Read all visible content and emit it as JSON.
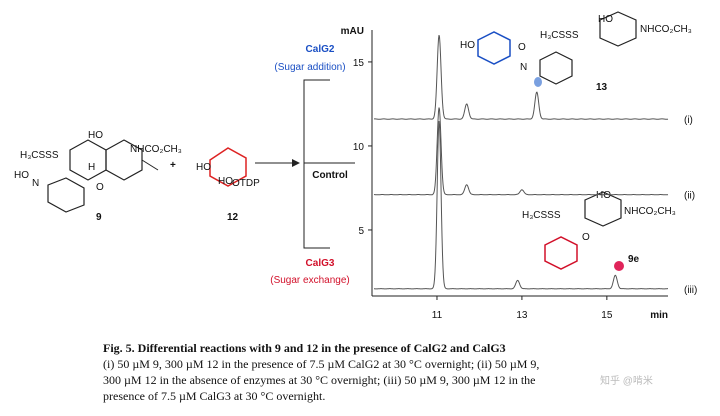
{
  "figure": {
    "chart": {
      "y_label": "mAU",
      "x_label": "min",
      "xlim": [
        9.47,
        16.44
      ],
      "ylim": [
        1.07,
        16.9
      ],
      "xticks": [
        11,
        13,
        15
      ],
      "yticks": [
        5,
        10,
        15
      ],
      "traces": [
        {
          "label": "(i)",
          "baseline": 11.6,
          "peaks": [
            {
              "x": 11.05,
              "height": 16.6
            },
            {
              "x": 11.7,
              "height": 12.5
            },
            {
              "x": 13.35,
              "height": 13.2
            }
          ]
        },
        {
          "label": "(ii)",
          "baseline": 7.1,
          "peaks": [
            {
              "x": 11.05,
              "height": 12.3
            },
            {
              "x": 11.7,
              "height": 7.7
            },
            {
              "x": 13.0,
              "height": 7.4
            }
          ]
        },
        {
          "label": "(iii)",
          "baseline": 1.5,
          "peaks": [
            {
              "x": 11.05,
              "height": 11.5
            },
            {
              "x": 12.9,
              "height": 2.0
            },
            {
              "x": 15.2,
              "height": 2.3
            }
          ]
        }
      ]
    },
    "reagents": {
      "compound_9": {
        "number": "9",
        "labels": [
          "H₃CSSS",
          "HO",
          "NHCO₂CH₃",
          "HO",
          "N",
          "H",
          "O"
        ]
      },
      "plus": "+",
      "compound_12": {
        "number": "12",
        "labels": [
          "HO",
          "HO",
          "OTDP"
        ]
      }
    },
    "conditions": {
      "calg2": "CalG2",
      "calg2_note": "(Sugar addition)",
      "control": "Control",
      "calg3": "CalG3",
      "calg3_note": "(Sugar exchange)"
    },
    "products": {
      "compound_13": {
        "number": "13",
        "labels": [
          "HO",
          "NHCO₂CH₃",
          "H₃CSSS",
          "HO",
          "N",
          "O"
        ]
      },
      "compound_9e": {
        "number": "9e",
        "labels": [
          "H₃CSSS",
          "HO",
          "NHCO₂CH₃",
          "O"
        ]
      }
    }
  },
  "caption": {
    "title": "Fig. 5. Differential reactions with 9 and 12 in the presence of CalG2 and CalG3",
    "lines": [
      "(i) 50 µM 9, 300 µM 12 in the presence of 7.5 µM CalG2 at 30 °C overnight; (ii) 50 µM 9,",
      "300 µM 12 in the absence of enzymes at 30 °C overnight; (iii) 50 µM 9, 300 µM 12 in the",
      "presence of 7.5 µM CalG3 at 30 °C overnight."
    ]
  },
  "watermark": "知乎 @啃米"
}
